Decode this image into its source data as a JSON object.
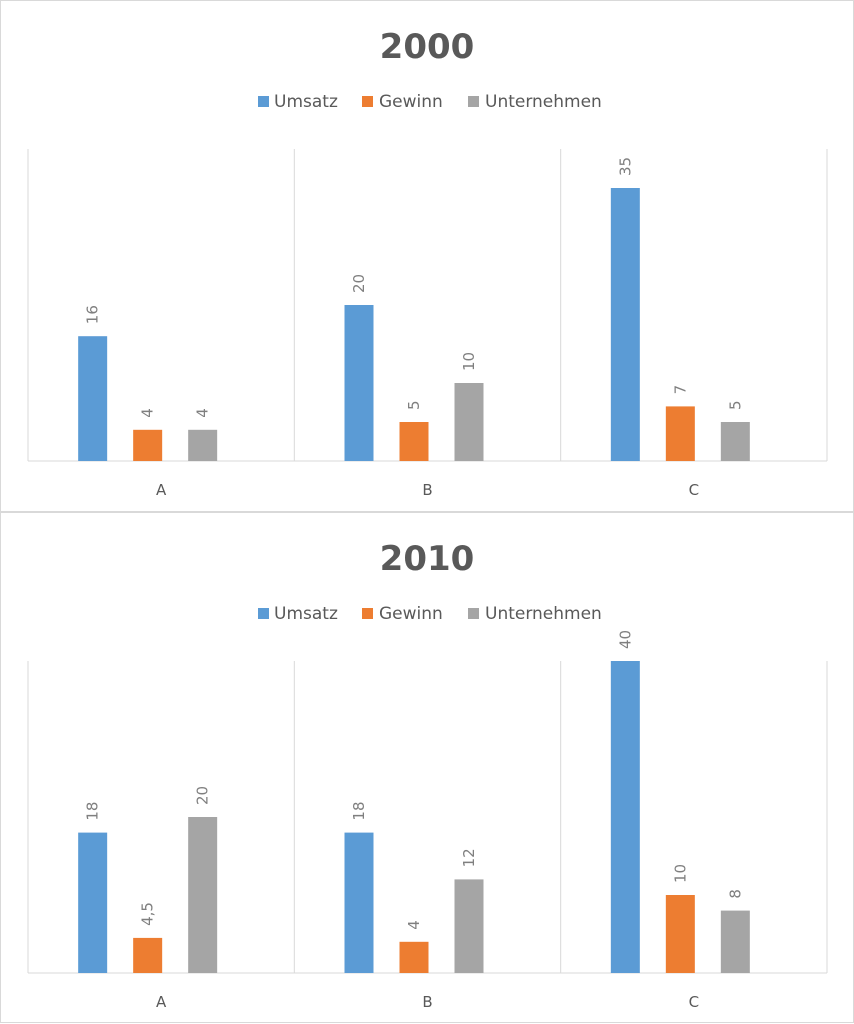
{
  "chart_data": [
    {
      "type": "bar",
      "title": "2000",
      "categories": [
        "A",
        "B",
        "C"
      ],
      "ylim": [
        0,
        40
      ],
      "grid": false,
      "legend": "top",
      "data_labels": [
        [
          "16",
          "20",
          "35"
        ],
        [
          "4",
          "5",
          "7"
        ],
        [
          "4",
          "10",
          "5"
        ]
      ],
      "series": [
        {
          "name": "Umsatz",
          "color": "#5b9bd5",
          "values": [
            16,
            20,
            35
          ]
        },
        {
          "name": "Gewinn",
          "color": "#ed7d31",
          "values": [
            4,
            5,
            7
          ]
        },
        {
          "name": "Unternehmen",
          "color": "#a5a5a5",
          "values": [
            4,
            10,
            5
          ]
        }
      ]
    },
    {
      "type": "bar",
      "title": "2010",
      "categories": [
        "A",
        "B",
        "C"
      ],
      "ylim": [
        0,
        40
      ],
      "grid": false,
      "legend": "top",
      "data_labels": [
        [
          "18",
          "18",
          "40"
        ],
        [
          "4,5",
          "4",
          "10"
        ],
        [
          "20",
          "12",
          "8"
        ]
      ],
      "series": [
        {
          "name": "Umsatz",
          "color": "#5b9bd5",
          "values": [
            18,
            18,
            40
          ]
        },
        {
          "name": "Gewinn",
          "color": "#ed7d31",
          "values": [
            4.5,
            4,
            10
          ]
        },
        {
          "name": "Unternehmen",
          "color": "#a5a5a5",
          "values": [
            20,
            12,
            8
          ]
        }
      ]
    }
  ]
}
